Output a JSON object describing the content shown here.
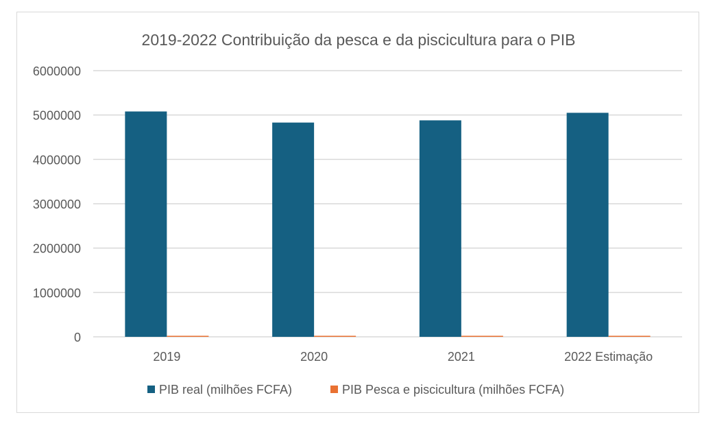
{
  "chart_data": {
    "type": "bar",
    "title": "2019-2022 Contribuição da pesca e da piscicultura para o PIB",
    "categories": [
      "2019",
      "2020",
      "2021",
      "2022 Estimação"
    ],
    "series": [
      {
        "name": "PIB real (milhões FCFA)",
        "color": "#156082",
        "values": [
          5080000,
          4830000,
          4880000,
          5050000
        ]
      },
      {
        "name": "PIB Pesca e piscicultura (milhões FCFA)",
        "color": "#e97132",
        "values": [
          15000,
          15000,
          15000,
          15000
        ]
      }
    ],
    "ylim": [
      0,
      6000000
    ],
    "yticks": [
      "0",
      "1000000",
      "2000000",
      "3000000",
      "4000000",
      "5000000",
      "6000000"
    ],
    "grid": true,
    "legend": "bottom",
    "xlabel": "",
    "ylabel": ""
  }
}
